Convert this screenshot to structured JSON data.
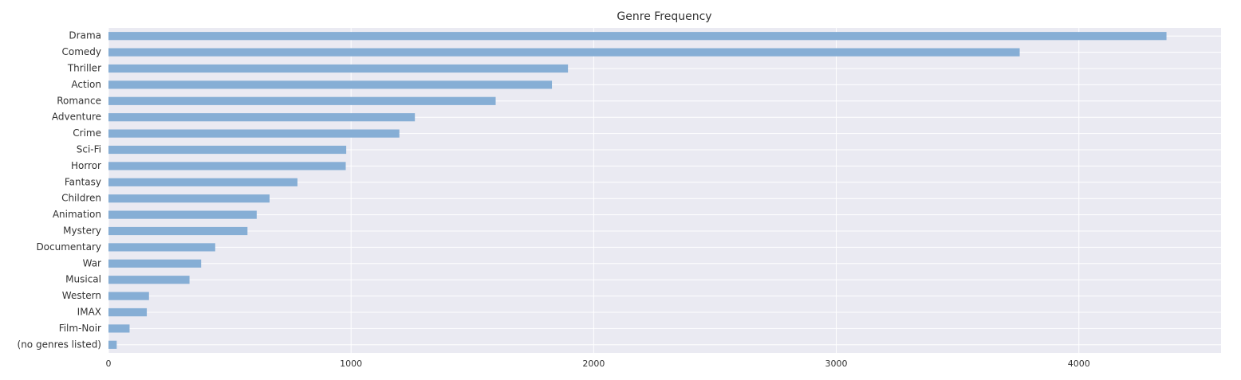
{
  "chart_data": {
    "type": "barh",
    "title": "Genre Frequency",
    "categories": [
      "Drama",
      "Comedy",
      "Thriller",
      "Action",
      "Romance",
      "Adventure",
      "Crime",
      "Sci-Fi",
      "Horror",
      "Fantasy",
      "Children",
      "Animation",
      "Mystery",
      "Documentary",
      "War",
      "Musical",
      "Western",
      "IMAX",
      "Film-Noir",
      "(no genres listed)"
    ],
    "values": [
      4361,
      3756,
      1894,
      1828,
      1596,
      1263,
      1199,
      980,
      978,
      779,
      664,
      611,
      573,
      440,
      382,
      334,
      167,
      158,
      87,
      34
    ],
    "color": "#86aed5",
    "xlim": [
      0,
      4586
    ],
    "xticks": [
      0,
      1000,
      2000,
      3000,
      4000
    ],
    "grid": true
  }
}
